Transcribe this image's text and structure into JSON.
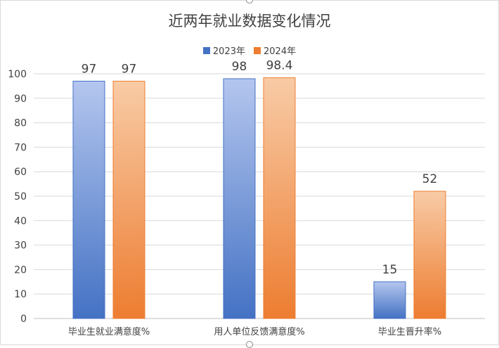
{
  "chart_data": {
    "type": "bar",
    "title": "近两年就业数据变化情况",
    "categories": [
      "毕业生就业满意度%",
      "用人单位反馈满意度%",
      "毕业生晋升率%"
    ],
    "series": [
      {
        "name": "2023年",
        "values": [
          97,
          98,
          15
        ],
        "color_top": "#b4c6ee",
        "color_bottom": "#4472c4",
        "edge": "#4472c4"
      },
      {
        "name": "2024年",
        "values": [
          97,
          98.4,
          52
        ],
        "color_top": "#f8cba6",
        "color_bottom": "#ed7d31",
        "edge": "#ed7d31"
      }
    ],
    "data_labels": [
      [
        "97",
        "98",
        "15"
      ],
      [
        "97",
        "98.4",
        "52"
      ]
    ],
    "y_ticks": [
      "0",
      "10",
      "20",
      "30",
      "40",
      "50",
      "60",
      "70",
      "80",
      "90",
      "100"
    ],
    "ylim": [
      0,
      100
    ],
    "grid": true,
    "legend_position": "top"
  }
}
